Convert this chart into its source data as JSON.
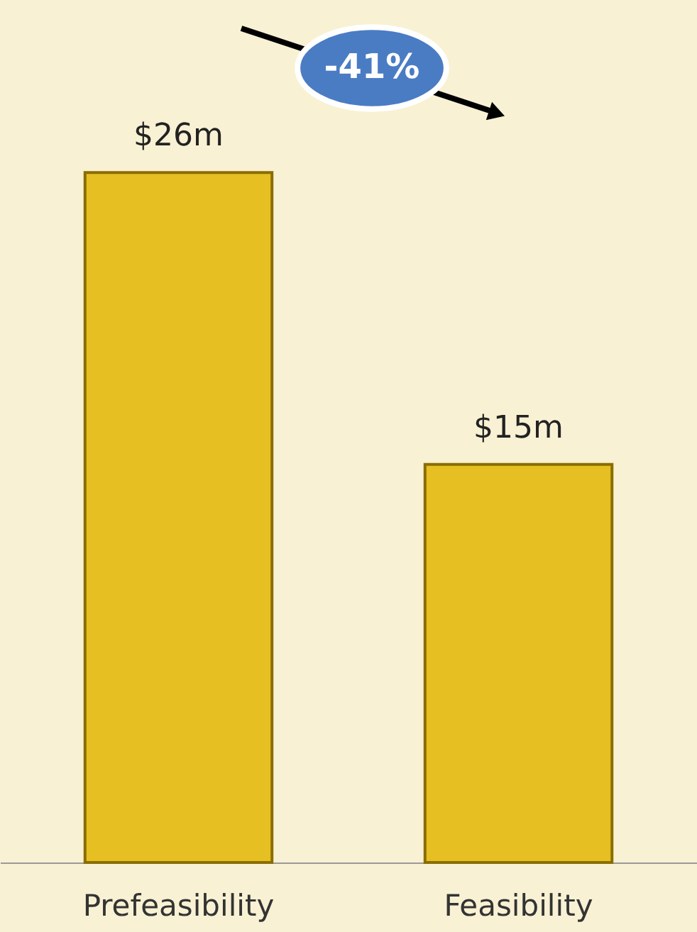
{
  "chart_data": {
    "type": "bar",
    "categories": [
      "Prefeasibility",
      "Feasibility"
    ],
    "values": [
      26,
      15
    ],
    "value_labels": [
      "$26m",
      "$15m"
    ],
    "color": "#e6bf22",
    "ylim": [
      0,
      32.5
    ],
    "tick_labels": "x",
    "annotations": [
      "-41%"
    ]
  }
}
